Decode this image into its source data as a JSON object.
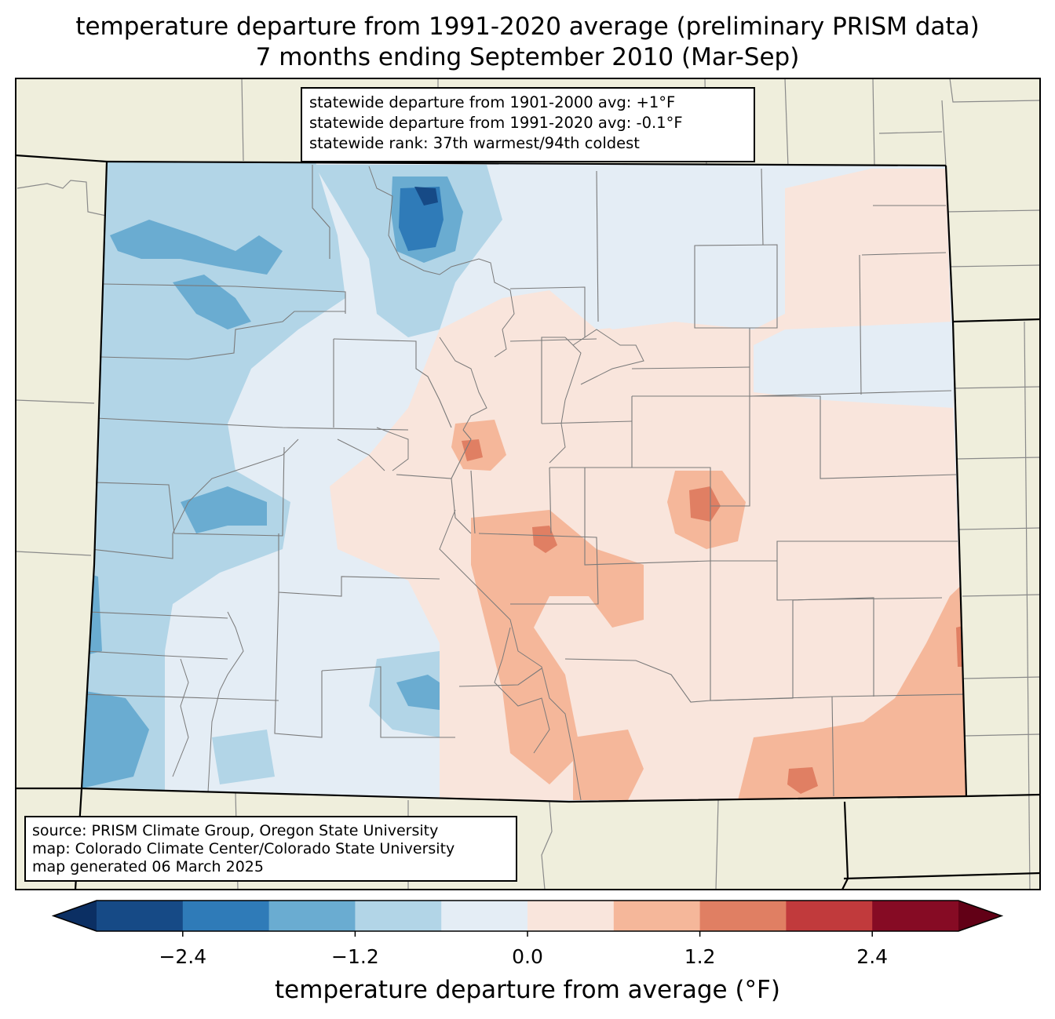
{
  "title": {
    "line1": "temperature departure from 1991-2020 average (preliminary PRISM data)",
    "line2": "7 months ending September 2010 (Mar-Sep)"
  },
  "stats": {
    "line1": "statewide departure from 1901-2000 avg: +1°F",
    "line2": "statewide departure from 1991-2020 avg: -0.1°F",
    "line3": "statewide rank: 37th warmest/94th coldest"
  },
  "source": {
    "line1": "source: PRISM Climate Group, Oregon State University",
    "line2": "map: Colorado Climate Center/Colorado State University",
    "line3": "map generated 06 March 2025"
  },
  "colorbar": {
    "label": "temperature departure from average (°F)",
    "ticks": [
      "−2.4",
      "−1.2",
      "0.0",
      "1.2",
      "2.4"
    ],
    "tick_values": [
      -2.4,
      -1.2,
      0.0,
      1.2,
      2.4
    ],
    "range": [
      -3.0,
      3.0
    ],
    "step": 0.6,
    "colors": [
      "#0b2f63",
      "#164a86",
      "#2f7bb8",
      "#6aacd1",
      "#b2d5e7",
      "#e4edf5",
      "#f9e5dc",
      "#f5b79a",
      "#e07f63",
      "#c13a3c",
      "#860b24",
      "#620016"
    ]
  },
  "map_colors": {
    "land": "#efeedc",
    "ocean_edge": "#ffffff"
  }
}
